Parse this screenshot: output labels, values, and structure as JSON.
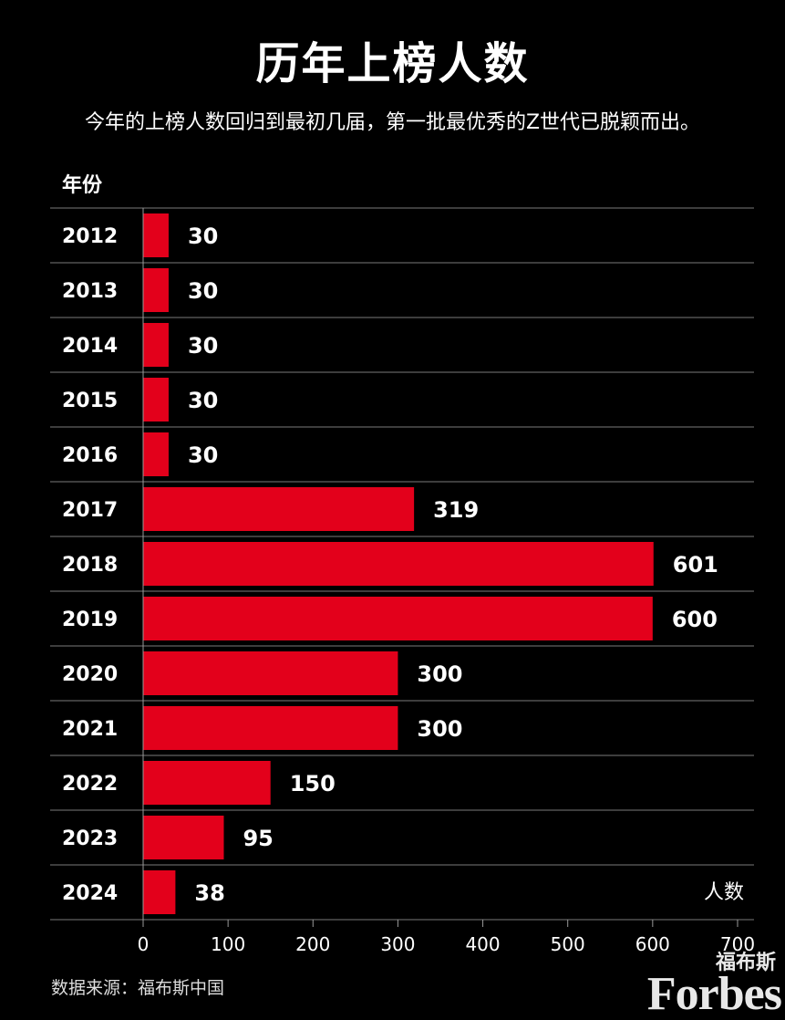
{
  "chart_data": {
    "type": "bar",
    "orientation": "horizontal",
    "title": "历年上榜人数",
    "subtitle": "今年的上榜人数回归到最初几届，第一批最优秀的Z世代已脱颖而出。",
    "ylabel": "年份",
    "xlabel": "人数",
    "categories": [
      "2012",
      "2013",
      "2014",
      "2015",
      "2016",
      "2017",
      "2018",
      "2019",
      "2020",
      "2021",
      "2022",
      "2023",
      "2024"
    ],
    "values": [
      30,
      30,
      30,
      30,
      30,
      319,
      601,
      600,
      300,
      300,
      150,
      95,
      38
    ],
    "value_labels": [
      "30",
      "30",
      "30",
      "30",
      "30",
      "319",
      "601",
      "600",
      "300",
      "300",
      "150",
      "95",
      "38"
    ],
    "xlim": [
      0,
      700
    ],
    "xticks": [
      "0",
      "100",
      "200",
      "300",
      "400",
      "500",
      "600",
      "700"
    ],
    "grid": "horizontal row dividers",
    "bar_color": "#e3001b"
  },
  "footer": {
    "source": "数据来源：福布斯中国",
    "logo_cn": "福布斯",
    "logo_en": "Forbes"
  }
}
